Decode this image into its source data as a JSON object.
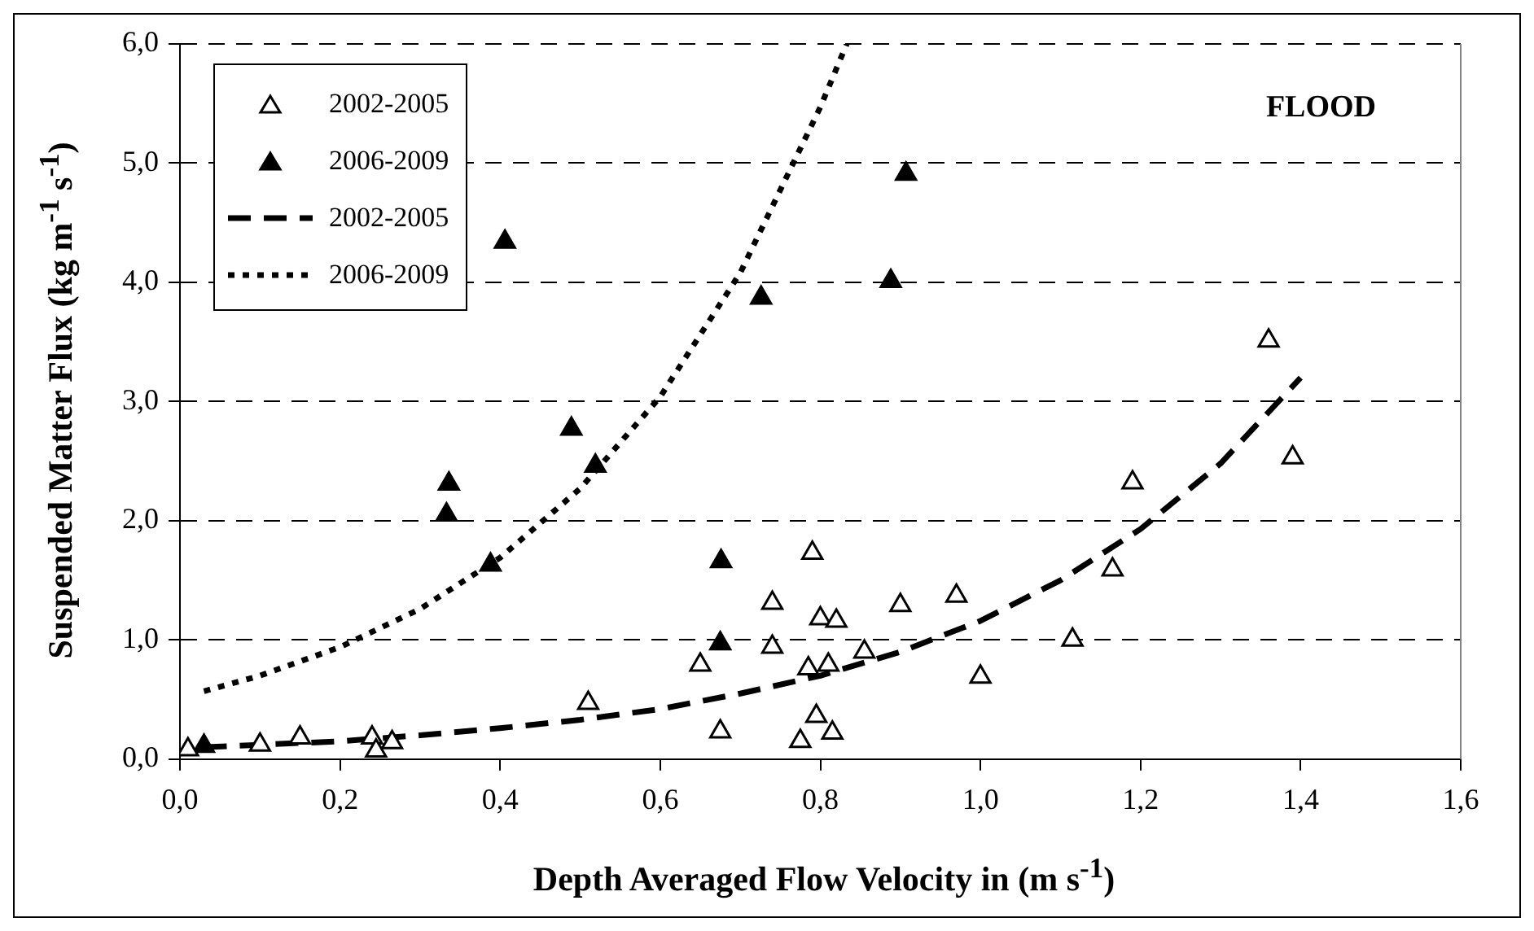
{
  "chart_data": {
    "type": "scatter",
    "xlabel": "Depth Averaged Flow Velocity in (m s$^{-1}$)",
    "ylabel": "Suspended Matter Flux (kg m$^{-1}$ s$^{-1}$)",
    "annotations": [
      "FLOOD"
    ],
    "xlim": [
      0,
      1.6
    ],
    "xticks": [
      {
        "value": 0,
        "label": "0,0"
      },
      {
        "value": 0.2,
        "label": "0,2"
      },
      {
        "value": 0.4,
        "label": "0,4"
      },
      {
        "value": 0.6,
        "label": "0,6"
      },
      {
        "value": 0.8,
        "label": "0,8"
      },
      {
        "value": 1,
        "label": "1,0"
      },
      {
        "value": 1.2,
        "label": "1,2"
      },
      {
        "value": 1.4,
        "label": "1,4"
      },
      {
        "value": 1.6,
        "label": "1,6"
      }
    ],
    "ylim": [
      0,
      6
    ],
    "yticks": [
      {
        "value": 0,
        "label": "0,0"
      },
      {
        "value": 1,
        "label": "1,0"
      },
      {
        "value": 2,
        "label": "2,0"
      },
      {
        "value": 3,
        "label": "3,0"
      },
      {
        "value": 4,
        "label": "4,0"
      },
      {
        "value": 5,
        "label": "5,0"
      },
      {
        "value": 6,
        "label": "6,0"
      }
    ],
    "grid": "y",
    "legend": "top left",
    "marker": "triangle",
    "series": [
      {
        "name": "2002-2005",
        "color": "#ffffff",
        "x": [
          0.01,
          0.1,
          0.15,
          0.24,
          0.245,
          0.265,
          0.51,
          0.65,
          0.675,
          0.74,
          0.74,
          0.79,
          0.785,
          0.8,
          0.795,
          0.775,
          0.82,
          0.81,
          0.815,
          0.855,
          0.9,
          0.97,
          1.0,
          1.115,
          1.165,
          1.19,
          1.36,
          1.39
        ],
        "values": [
          0.08,
          0.12,
          0.18,
          0.18,
          0.07,
          0.14,
          0.47,
          0.79,
          0.23,
          1.31,
          0.94,
          1.73,
          0.76,
          1.18,
          0.36,
          0.15,
          1.16,
          0.79,
          0.22,
          0.9,
          1.29,
          1.37,
          0.69,
          1.0,
          1.59,
          2.32,
          3.51,
          2.53
        ]
      },
      {
        "name": "2006-2009",
        "color": "#000000",
        "x": [
          0.03,
          0.333,
          0.336,
          0.388,
          0.406,
          0.489,
          0.519,
          0.676,
          0.675,
          0.726,
          0.888,
          0.907
        ],
        "values": [
          0.11,
          2.05,
          2.31,
          1.63,
          4.34,
          2.77,
          2.46,
          1.66,
          0.97,
          3.87,
          4.01,
          4.91
        ]
      },
      {
        "name": "2002-2005",
        "type": "line",
        "color": "#000000",
        "marker": "none",
        "line_style": "dashed",
        "x": [
          0.03,
          0.1,
          0.2,
          0.3,
          0.4,
          0.5,
          0.6,
          0.7,
          0.8,
          0.9,
          1.0,
          1.1,
          1.2,
          1.3,
          1.4
        ],
        "values": [
          0.1,
          0.12,
          0.15,
          0.2,
          0.26,
          0.33,
          0.42,
          0.55,
          0.7,
          0.9,
          1.16,
          1.5,
          1.93,
          2.48,
          3.2
        ]
      },
      {
        "name": "2006-2009",
        "type": "line",
        "color": "#000000",
        "marker": "none",
        "line_style": "dotted",
        "x": [
          0.03,
          0.1,
          0.2,
          0.3,
          0.4,
          0.5,
          0.6,
          0.7,
          0.8,
          0.833
        ],
        "values": [
          0.57,
          0.7,
          0.94,
          1.26,
          1.69,
          2.27,
          3.04,
          4.08,
          5.47,
          6.0
        ]
      }
    ]
  }
}
